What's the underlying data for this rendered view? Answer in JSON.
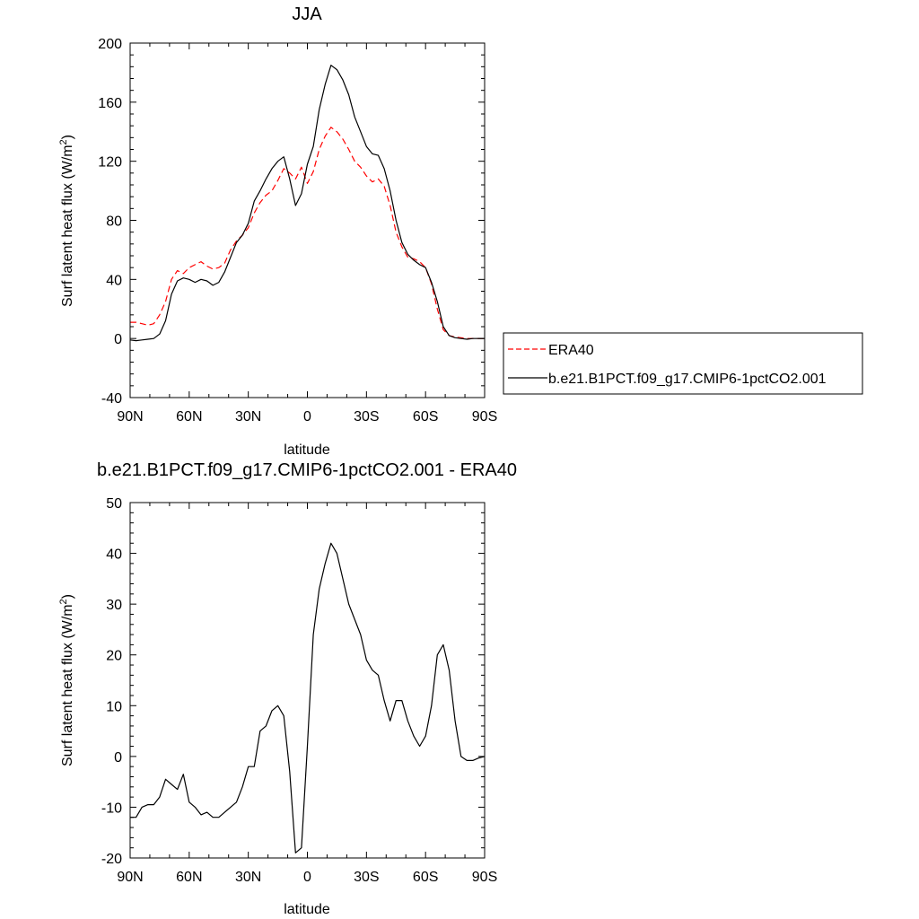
{
  "chart_data": [
    {
      "type": "line",
      "title": "JJA",
      "xlabel": "latitude",
      "ylabel": "Surf latent heat flux (W/m",
      "ylabel_sup": "2",
      "ylabel_end": ")",
      "xlim": [
        90,
        -90
      ],
      "ylim": [
        -40,
        200
      ],
      "xticks": [
        90,
        60,
        30,
        0,
        -30,
        -60,
        -90
      ],
      "xtick_labels": [
        "90N",
        "60N",
        "30N",
        "0",
        "30S",
        "60S",
        "90S"
      ],
      "yticks": [
        -40,
        0,
        40,
        80,
        120,
        160,
        200
      ],
      "ytick_labels": [
        "-40",
        "0",
        "40",
        "80",
        "120",
        "160",
        "200"
      ],
      "legend": "right",
      "series": [
        {
          "name": "ERA40",
          "color": "#ff0000",
          "dash": "dashed",
          "x": [
            90,
            87,
            84,
            81,
            78,
            75,
            72,
            69,
            66,
            63,
            60,
            57,
            54,
            51,
            48,
            45,
            42,
            39,
            36,
            33,
            30,
            27,
            24,
            21,
            18,
            15,
            12,
            9,
            6,
            3,
            0,
            -3,
            -6,
            -9,
            -12,
            -15,
            -18,
            -21,
            -24,
            -27,
            -30,
            -33,
            -36,
            -39,
            -42,
            -45,
            -48,
            -51,
            -54,
            -57,
            -60,
            -63,
            -66,
            -69,
            -72,
            -75,
            -78,
            -81,
            -84,
            -87,
            -90
          ],
          "y": [
            11,
            11,
            10,
            9,
            10,
            16,
            25,
            40,
            46,
            44,
            48,
            50,
            52,
            49,
            47,
            48,
            51,
            60,
            66,
            70,
            75,
            85,
            92,
            97,
            100,
            107,
            115,
            112,
            108,
            116,
            105,
            113,
            128,
            137,
            143,
            140,
            135,
            128,
            120,
            116,
            110,
            106,
            108,
            103,
            90,
            72,
            62,
            55,
            54,
            52,
            48,
            37,
            20,
            6,
            2,
            1,
            0.5,
            0,
            0,
            0,
            0
          ]
        },
        {
          "name": "b.e21.B1PCT.f09_g17.CMIP6-1pctCO2.001",
          "color": "#000000",
          "dash": "solid",
          "x": [
            90,
            87,
            84,
            81,
            78,
            75,
            72,
            69,
            66,
            63,
            60,
            57,
            54,
            51,
            48,
            45,
            42,
            39,
            36,
            33,
            30,
            27,
            24,
            21,
            18,
            15,
            12,
            9,
            6,
            3,
            0,
            -3,
            -6,
            -9,
            -12,
            -15,
            -18,
            -21,
            -24,
            -27,
            -30,
            -33,
            -36,
            -39,
            -42,
            -45,
            -48,
            -51,
            -54,
            -57,
            -60,
            -63,
            -66,
            -69,
            -72,
            -75,
            -78,
            -81,
            -84,
            -87,
            -90
          ],
          "y": [
            -1,
            -1.5,
            -1,
            -0.5,
            0,
            3,
            12,
            30,
            39,
            41,
            40,
            38,
            40,
            39,
            36,
            38,
            45,
            55,
            65,
            70,
            78,
            93,
            100,
            108,
            115,
            120,
            123,
            108,
            90,
            98,
            118,
            130,
            155,
            172,
            185,
            182,
            175,
            165,
            150,
            140,
            130,
            125,
            124,
            115,
            100,
            80,
            65,
            57,
            53,
            50,
            48,
            38,
            25,
            8,
            2,
            0.5,
            0,
            -0.5,
            0,
            0,
            0
          ]
        }
      ]
    },
    {
      "type": "line",
      "title": "b.e21.B1PCT.f09_g17.CMIP6-1pctCO2.001 - ERA40",
      "xlabel": "latitude",
      "ylabel": "Surf latent heat flux (W/m",
      "ylabel_sup": "2",
      "ylabel_end": ")",
      "xlim": [
        90,
        -90
      ],
      "ylim": [
        -20,
        50
      ],
      "xticks": [
        90,
        60,
        30,
        0,
        -30,
        -60,
        -90
      ],
      "xtick_labels": [
        "90N",
        "60N",
        "30N",
        "0",
        "30S",
        "60S",
        "90S"
      ],
      "yticks": [
        -20,
        -10,
        0,
        10,
        20,
        30,
        40,
        50
      ],
      "ytick_labels": [
        "-20",
        "-10",
        "0",
        "10",
        "20",
        "30",
        "40",
        "50"
      ],
      "series": [
        {
          "color": "#000000",
          "dash": "solid",
          "x": [
            90,
            87,
            84,
            81,
            78,
            75,
            72,
            69,
            66,
            63,
            60,
            57,
            54,
            51,
            48,
            45,
            42,
            39,
            36,
            33,
            30,
            27,
            24,
            21,
            18,
            15,
            12,
            9,
            6,
            3,
            0,
            -3,
            -6,
            -9,
            -12,
            -15,
            -18,
            -21,
            -24,
            -27,
            -30,
            -33,
            -36,
            -39,
            -42,
            -45,
            -48,
            -51,
            -54,
            -57,
            -60,
            -63,
            -66,
            -69,
            -72,
            -75,
            -78,
            -81,
            -84,
            -87,
            -90
          ],
          "y": [
            -12,
            -12,
            -10,
            -9.5,
            -9.5,
            -8,
            -4.5,
            -5.5,
            -6.5,
            -3.5,
            -9,
            -10,
            -11.5,
            -11,
            -12,
            -12,
            -11,
            -10,
            -9,
            -6,
            -2,
            -2,
            5,
            6,
            9,
            10,
            8,
            -3,
            -19,
            -18,
            2,
            24,
            33,
            38,
            42,
            40,
            35,
            30,
            27,
            24,
            19,
            17,
            16,
            11,
            7,
            11,
            11,
            7,
            4,
            2,
            4,
            10,
            20,
            22,
            17,
            7,
            0,
            -0.8,
            -0.8,
            -0.3,
            0
          ]
        }
      ]
    }
  ]
}
